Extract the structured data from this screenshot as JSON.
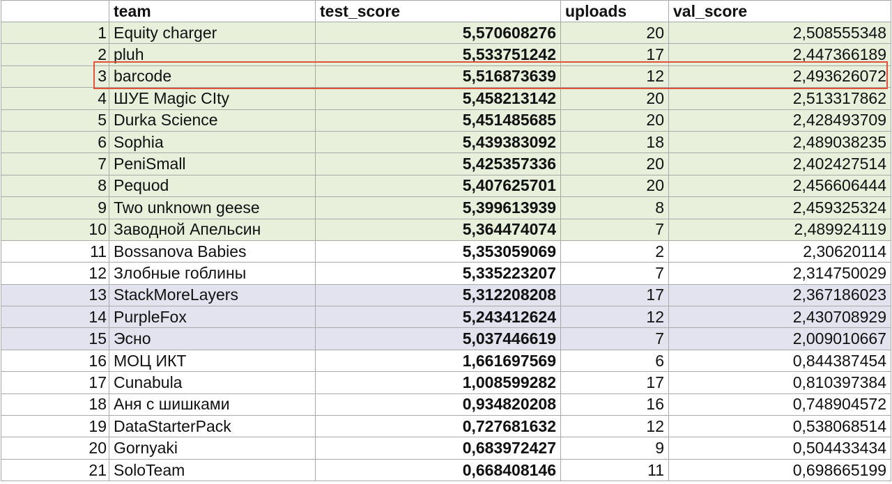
{
  "table": {
    "columns": [
      "",
      "team",
      "test_score",
      "uploads",
      "val_score"
    ],
    "rows": [
      {
        "idx": "1",
        "team": "Equity charger",
        "test_score": "5,570608276",
        "uploads": "20",
        "val_score": "2,508555348",
        "band": "green"
      },
      {
        "idx": "2",
        "team": "pluh",
        "test_score": "5,533751242",
        "uploads": "17",
        "val_score": "2,447366189",
        "band": "green"
      },
      {
        "idx": "3",
        "team": "barcode",
        "test_score": "5,516873639",
        "uploads": "12",
        "val_score": "2,493626072",
        "band": "green"
      },
      {
        "idx": "4",
        "team": "ШУЕ Magic CIty",
        "test_score": "5,458213142",
        "uploads": "20",
        "val_score": "2,513317862",
        "band": "green"
      },
      {
        "idx": "5",
        "team": "Durka Science",
        "test_score": "5,451485685",
        "uploads": "20",
        "val_score": "2,428493709",
        "band": "green"
      },
      {
        "idx": "6",
        "team": "Sophia",
        "test_score": "5,439383092",
        "uploads": "18",
        "val_score": "2,489038235",
        "band": "green"
      },
      {
        "idx": "7",
        "team": "PeniSmall",
        "test_score": "5,425357336",
        "uploads": "20",
        "val_score": "2,402427514",
        "band": "green"
      },
      {
        "idx": "8",
        "team": "Pequod",
        "test_score": "5,407625701",
        "uploads": "20",
        "val_score": "2,456606444",
        "band": "green"
      },
      {
        "idx": "9",
        "team": "Two unknown geese",
        "test_score": "5,399613939",
        "uploads": "8",
        "val_score": "2,459325324",
        "band": "green"
      },
      {
        "idx": "10",
        "team": "Заводной Апельсин",
        "test_score": "5,364474074",
        "uploads": "7",
        "val_score": "2,489924119",
        "band": "green"
      },
      {
        "idx": "11",
        "team": "Bossanova Babies",
        "test_score": "5,353059069",
        "uploads": "2",
        "val_score": "2,30620114",
        "band": "plain"
      },
      {
        "idx": "12",
        "team": "Злобные гоблины",
        "test_score": "5,335223207",
        "uploads": "7",
        "val_score": "2,314750029",
        "band": "plain"
      },
      {
        "idx": "13",
        "team": "StackMoreLayers",
        "test_score": "5,312208208",
        "uploads": "17",
        "val_score": "2,367186023",
        "band": "lav"
      },
      {
        "idx": "14",
        "team": "PurpleFox",
        "test_score": "5,243412624",
        "uploads": "12",
        "val_score": "2,430708929",
        "band": "lav"
      },
      {
        "idx": "15",
        "team": "Эсно",
        "test_score": "5,037446619",
        "uploads": "7",
        "val_score": "2,009010667",
        "band": "lav"
      },
      {
        "idx": "16",
        "team": "МОЦ ИКТ",
        "test_score": "1,661697569",
        "uploads": "6",
        "val_score": "0,844387454",
        "band": "plain"
      },
      {
        "idx": "17",
        "team": "Cunabula",
        "test_score": "1,008599282",
        "uploads": "17",
        "val_score": "0,810397384",
        "band": "plain"
      },
      {
        "idx": "18",
        "team": "Аня с шишками",
        "test_score": "0,934820208",
        "uploads": "16",
        "val_score": "0,748904572",
        "band": "plain"
      },
      {
        "idx": "19",
        "team": "DataStarterPack",
        "test_score": "0,727681632",
        "uploads": "12",
        "val_score": "0,538068514",
        "band": "plain"
      },
      {
        "idx": "20",
        "team": "Gornyaki",
        "test_score": "0,683972427",
        "uploads": "9",
        "val_score": "0,504433434",
        "band": "plain"
      },
      {
        "idx": "21",
        "team": "SoloTeam",
        "test_score": "0,668408146",
        "uploads": "11",
        "val_score": "0,698665199",
        "band": "plain"
      }
    ]
  },
  "colors": {
    "green_band": "#e8f0dc",
    "lavender_band": "#e3e3ef",
    "highlight_border": "#e0533a",
    "grid": "#a9a9a9"
  }
}
